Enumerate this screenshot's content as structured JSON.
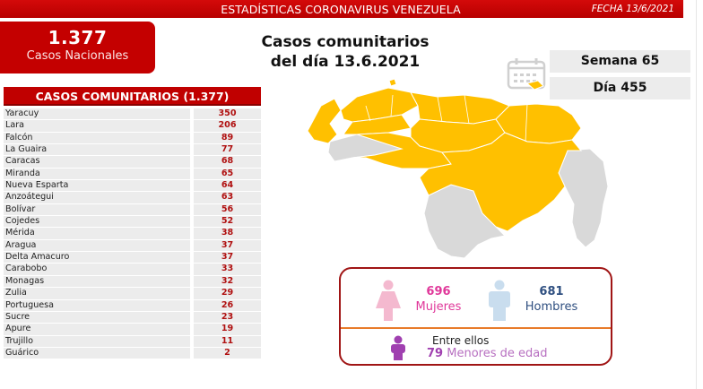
{
  "header": {
    "title": "ESTADÍSTICAS CORONAVIRUS VENEZUELA",
    "date": "FECHA 13/6/2021",
    "color": "#c00000"
  },
  "national": {
    "value": "1.377",
    "label": "Casos Nacionales"
  },
  "main_title": {
    "line1": "Casos comunitarios",
    "line2": "del día 13.6.2021"
  },
  "period": {
    "icon": "calendar-icon",
    "week": "Semana 65",
    "day": "Día 455"
  },
  "table": {
    "header": "CASOS COMUNITARIOS (1.377)",
    "rows": [
      {
        "state": "Yaracuy",
        "cases": "350"
      },
      {
        "state": "Lara",
        "cases": "206"
      },
      {
        "state": "Falcón",
        "cases": "89"
      },
      {
        "state": "La Guaira",
        "cases": "77"
      },
      {
        "state": "Caracas",
        "cases": "68"
      },
      {
        "state": "Miranda",
        "cases": "65"
      },
      {
        "state": "Nueva Esparta",
        "cases": "64"
      },
      {
        "state": "Anzoátegui",
        "cases": "63"
      },
      {
        "state": "Bolívar",
        "cases": "56"
      },
      {
        "state": "Cojedes",
        "cases": "52"
      },
      {
        "state": "Mérida",
        "cases": "38"
      },
      {
        "state": "Aragua",
        "cases": "37"
      },
      {
        "state": "Delta Amacuro",
        "cases": "37"
      },
      {
        "state": "Carabobo",
        "cases": "33"
      },
      {
        "state": "Monagas",
        "cases": "32"
      },
      {
        "state": "Zulia",
        "cases": "29"
      },
      {
        "state": "Portuguesa",
        "cases": "26"
      },
      {
        "state": "Sucre",
        "cases": "23"
      },
      {
        "state": "Apure",
        "cases": "19"
      },
      {
        "state": "Trujillo",
        "cases": "11"
      },
      {
        "state": "Guárico",
        "cases": "2"
      }
    ]
  },
  "map": {
    "icon": "venezuela-map",
    "affected_color": "#ffc000",
    "unaffected_color": "#d9d9d9"
  },
  "demographics": {
    "women": {
      "value": "696",
      "label": "Mujeres",
      "color": "#e0389a",
      "icon": "female-figure-icon"
    },
    "men": {
      "value": "681",
      "label": "Hombres",
      "color": "#2f4f80",
      "icon": "male-figure-icon"
    },
    "minors": {
      "intro": "Entre ellos",
      "value": "79",
      "label": "Menores de edad",
      "color": "#a040b0",
      "icon": "child-figure-icon"
    }
  }
}
